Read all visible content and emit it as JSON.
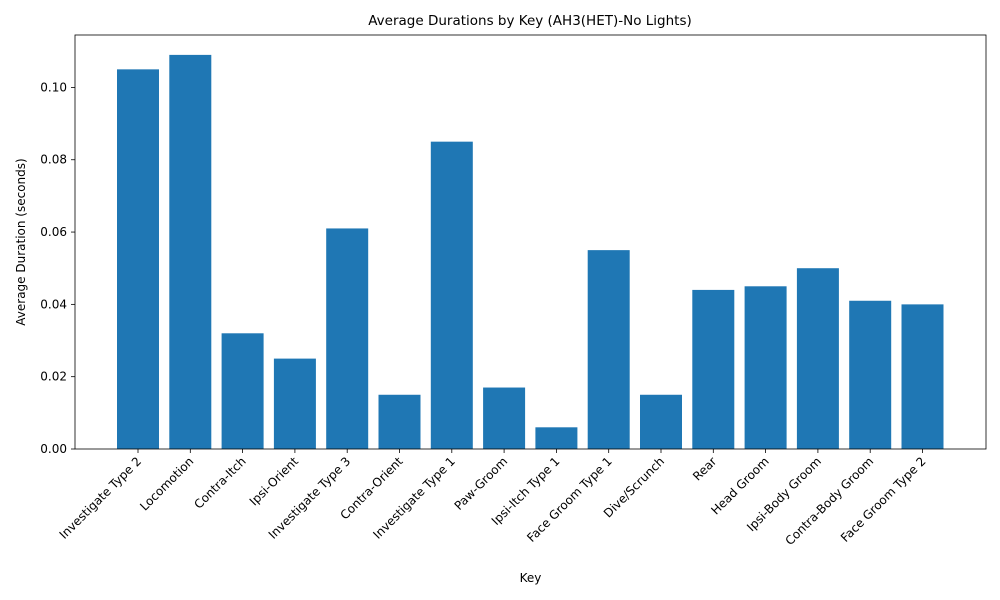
{
  "chart_data": {
    "type": "bar",
    "title": "Average Durations by Key (AH3(HET)-No Lights)",
    "xlabel": "Key",
    "ylabel": "Average Duration (seconds)",
    "categories": [
      "Investigate Type 2",
      "Locomotion",
      "Contra-Itch",
      "Ipsi-Orient",
      "Investigate Type 3",
      "Contra-Orient",
      "Investigate Type 1",
      "Paw-Groom",
      "Ipsi-Itch Type 1",
      "Face Groom Type 1",
      "Dive/Scrunch",
      "Rear",
      "Head Groom",
      "Ipsi-Body Groom",
      "Contra-Body Groom",
      "Face Groom Type 2"
    ],
    "values": [
      0.105,
      0.109,
      0.032,
      0.025,
      0.061,
      0.015,
      0.085,
      0.017,
      0.006,
      0.055,
      0.015,
      0.044,
      0.045,
      0.05,
      0.041,
      0.04
    ],
    "yticks": [
      "0.00",
      "0.02",
      "0.04",
      "0.06",
      "0.08",
      "0.10"
    ],
    "ylim": [
      0,
      0.1145
    ],
    "bar_color": "#1f77b4",
    "grid": false,
    "legend": "none"
  }
}
